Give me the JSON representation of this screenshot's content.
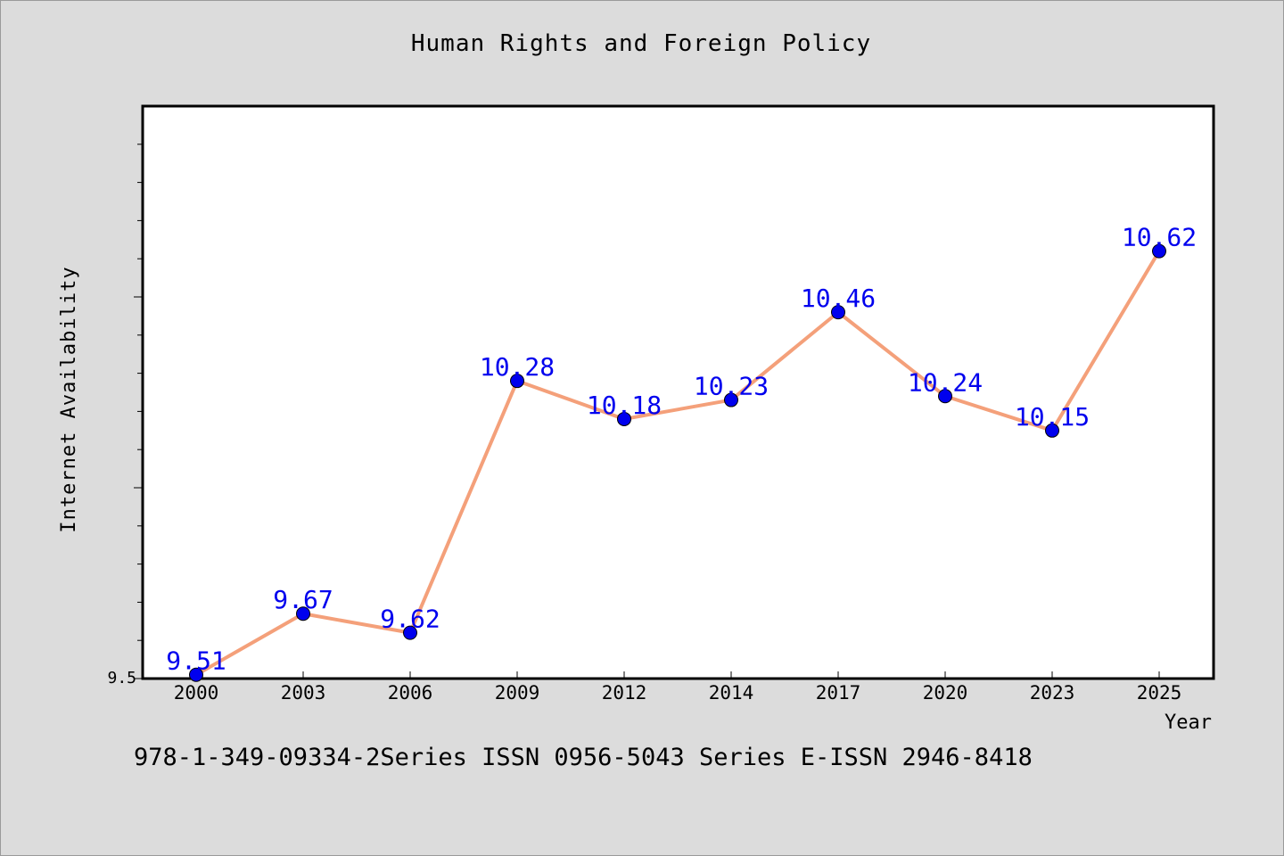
{
  "chart_data": {
    "type": "line",
    "title": "Human Rights and Foreign Policy",
    "xlabel": "Year",
    "ylabel": "Internet Availability",
    "categories": [
      "2000",
      "2003",
      "2006",
      "2009",
      "2012",
      "2014",
      "2017",
      "2020",
      "2023",
      "2025"
    ],
    "series": [
      {
        "values": [
          9.51,
          9.67,
          9.62,
          10.28,
          10.18,
          10.23,
          10.46,
          10.24,
          10.15,
          10.62
        ]
      }
    ],
    "data_labels": [
      "9.51",
      "9.67",
      "9.62",
      "10.28",
      "10.18",
      "10.23",
      "10.46",
      "10.24",
      "10.15",
      "10.62"
    ],
    "y_tick_label": "9.5",
    "ylim": [
      9.5,
      11.0
    ],
    "grid": false,
    "line_color": "#f4a07a",
    "marker_color": "#0000ee",
    "label_color": "#0000ee"
  },
  "footer": {
    "text": "978-1-349-09334-2Series ISSN 0956-5043 Series E-ISSN 2946-8418"
  }
}
